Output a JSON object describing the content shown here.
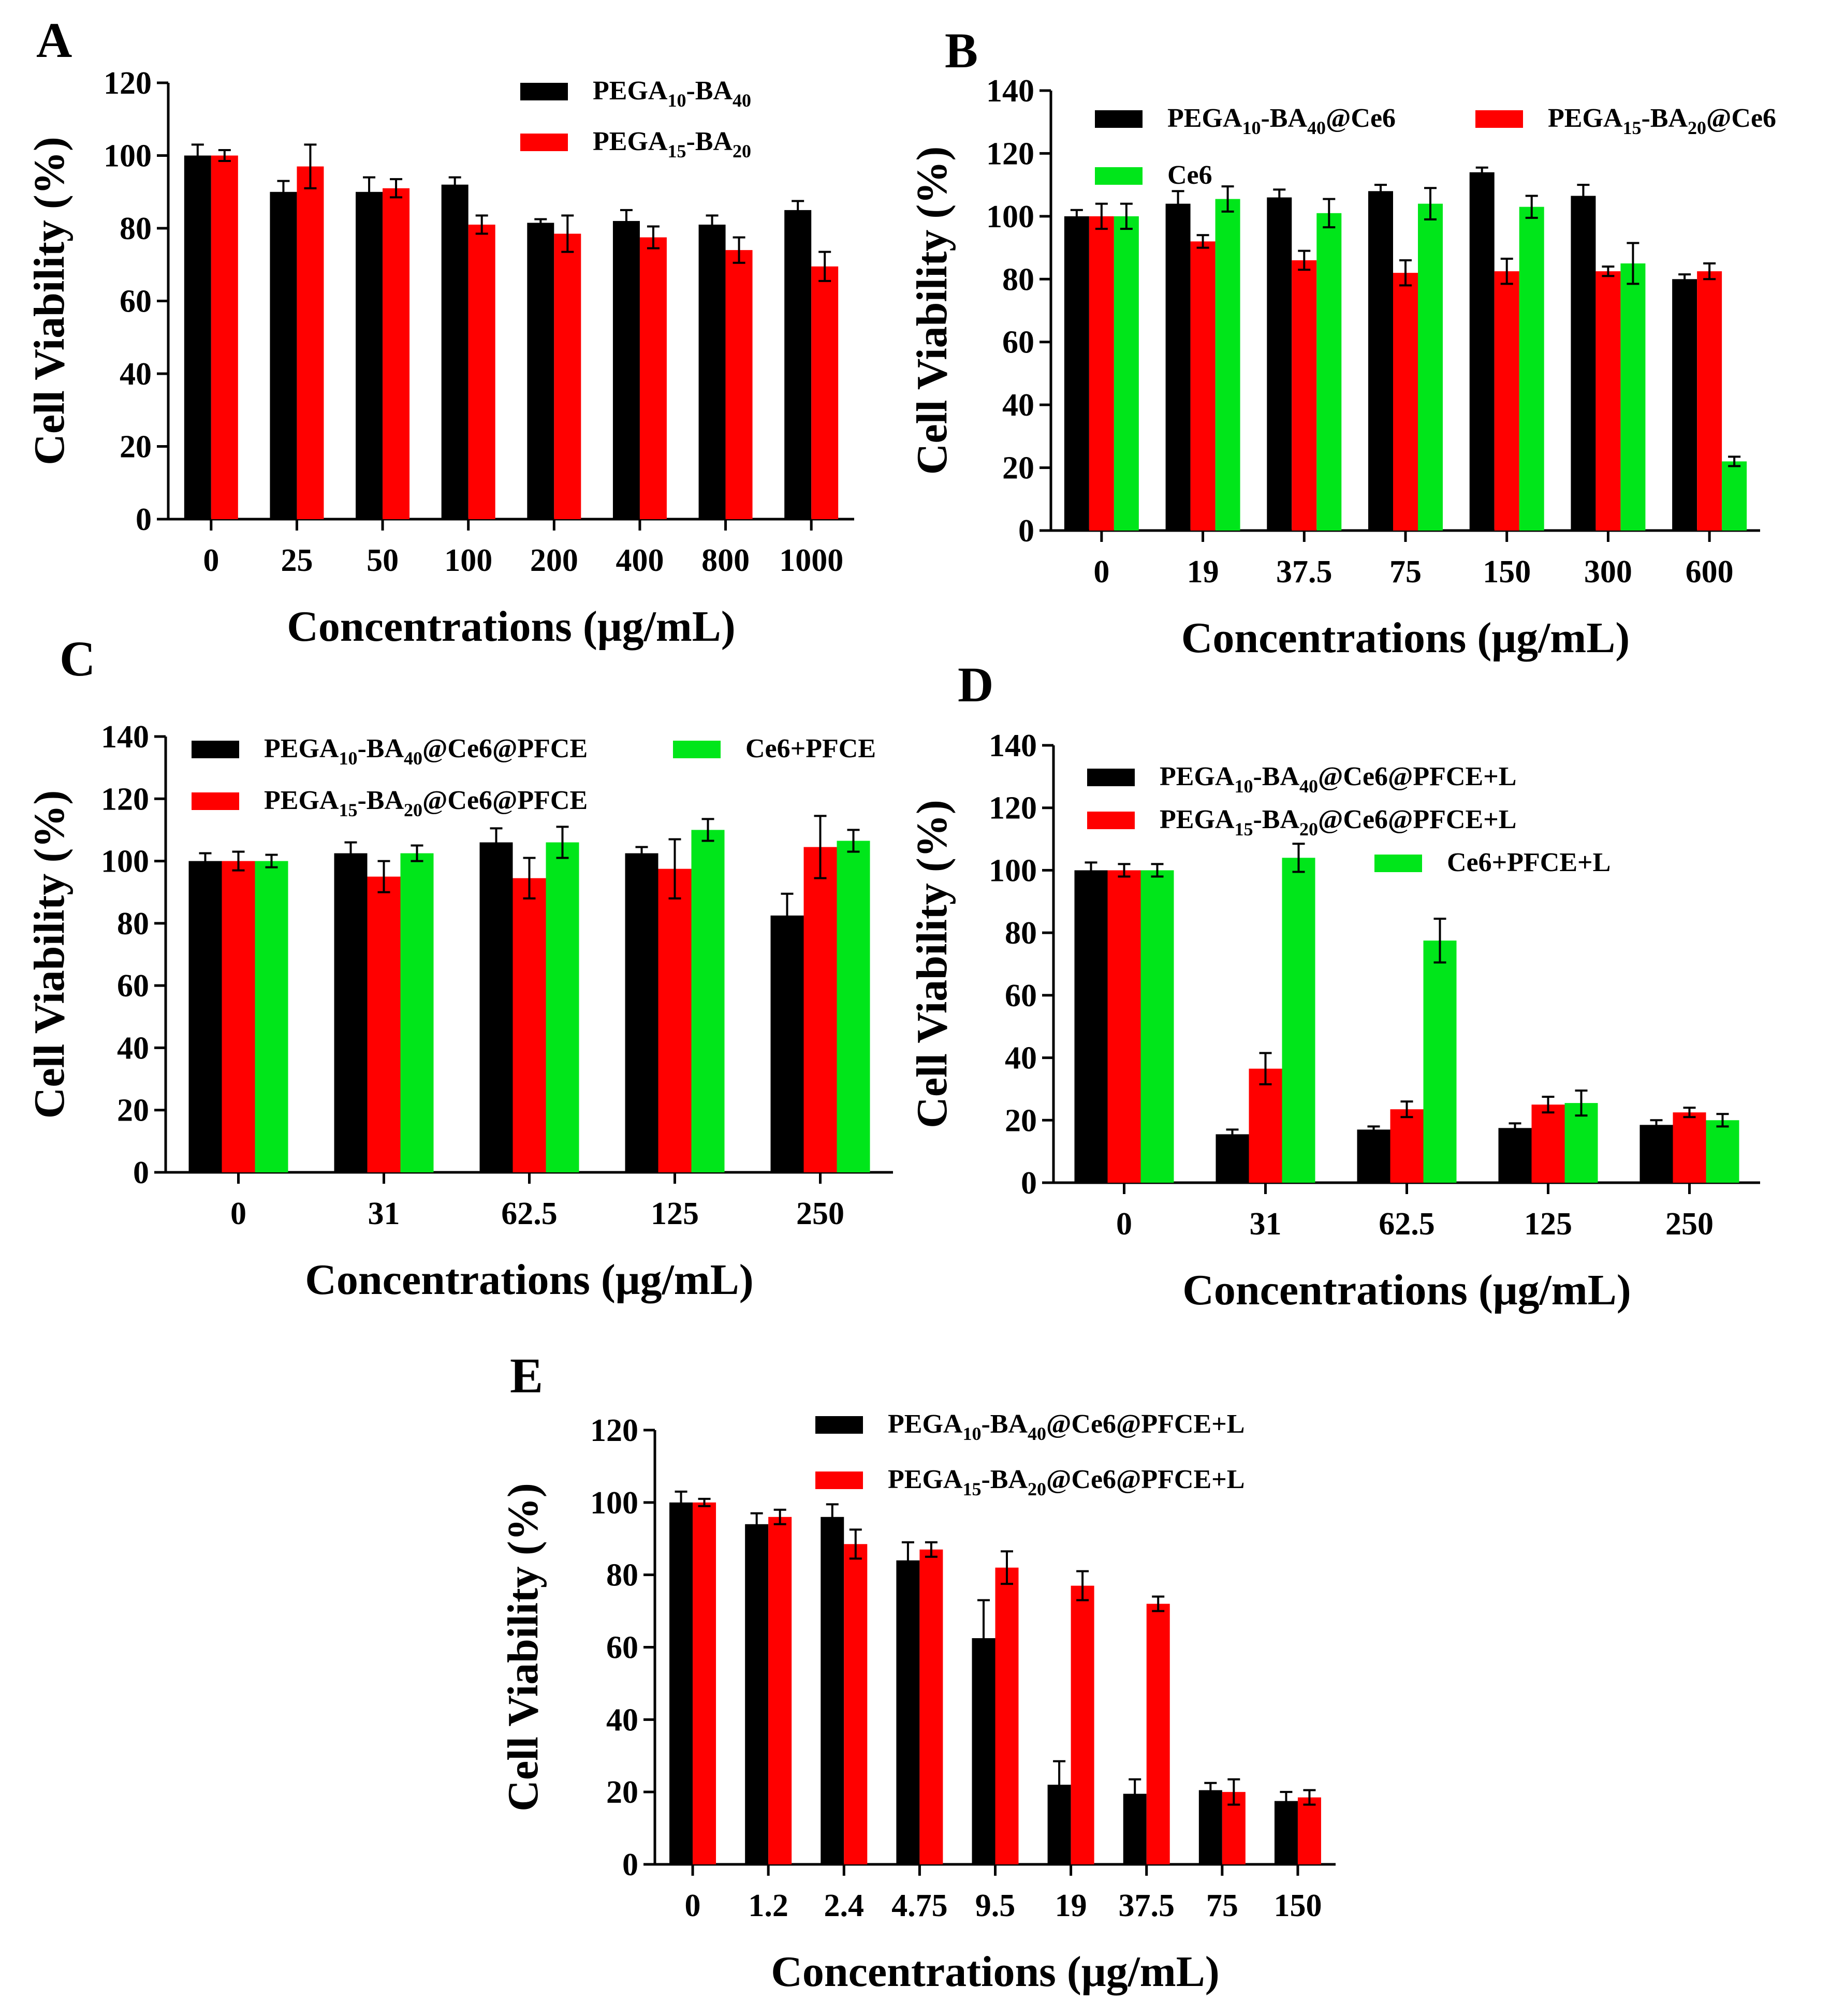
{
  "figure": {
    "name": "cell-viability-figure"
  },
  "chart_data": [
    {
      "id": "A",
      "type": "bar",
      "panel_label": "A",
      "xlabel": "Concentrations (μg/mL)",
      "ylabel": "Cell Viability (%)",
      "ylim": [
        0,
        120
      ],
      "yticks": [
        "0",
        "20",
        "40",
        "60",
        "80",
        "100",
        "120"
      ],
      "categories": [
        "0",
        "25",
        "50",
        "100",
        "200",
        "400",
        "800",
        "1000"
      ],
      "legend_columns": 1,
      "series": [
        {
          "name_parts": [
            [
              "PEGA",
              ""
            ],
            [
              "10",
              "sub"
            ],
            [
              "-BA",
              ""
            ],
            [
              "40",
              "sub"
            ]
          ],
          "color": "#000000",
          "values": [
            100,
            90,
            90,
            92,
            81.5,
            82,
            81,
            85
          ],
          "errors": [
            3,
            3,
            4,
            2,
            1,
            3,
            2.5,
            2.5
          ]
        },
        {
          "name_parts": [
            [
              "PEGA",
              ""
            ],
            [
              "15",
              "sub"
            ],
            [
              "-BA",
              ""
            ],
            [
              "20",
              "sub"
            ]
          ],
          "color": "#ff0000",
          "values": [
            100,
            97,
            91,
            81,
            78.5,
            77.5,
            74,
            69.5
          ],
          "errors": [
            1.5,
            6,
            2.5,
            2.5,
            5,
            3,
            3.5,
            4
          ]
        }
      ]
    },
    {
      "id": "B",
      "type": "bar",
      "panel_label": "B",
      "xlabel": "Concentrations (μg/mL)",
      "ylabel": "Cell Viability (%)",
      "ylim": [
        0,
        140
      ],
      "yticks": [
        "0",
        "20",
        "40",
        "60",
        "80",
        "100",
        "120",
        "140"
      ],
      "categories": [
        "0",
        "19",
        "37.5",
        "75",
        "150",
        "300",
        "600"
      ],
      "legend_columns": 2,
      "series": [
        {
          "name_parts": [
            [
              "PEGA",
              ""
            ],
            [
              "10",
              "sub"
            ],
            [
              "-BA",
              ""
            ],
            [
              "40",
              "sub"
            ],
            [
              "@Ce6",
              ""
            ]
          ],
          "color": "#000000",
          "values": [
            100,
            104,
            106,
            108,
            114,
            106.5,
            80
          ],
          "errors": [
            2,
            4,
            2.5,
            2,
            1.5,
            3.5,
            1.5
          ]
        },
        {
          "name_parts": [
            [
              "PEGA",
              ""
            ],
            [
              "15",
              "sub"
            ],
            [
              "-BA",
              ""
            ],
            [
              "20",
              "sub"
            ],
            [
              "@Ce6",
              ""
            ]
          ],
          "color": "#ff0000",
          "values": [
            100,
            92,
            86,
            82,
            82.5,
            82.5,
            82.5
          ],
          "errors": [
            4,
            2,
            3,
            4,
            4,
            1.5,
            2.5
          ]
        },
        {
          "name_parts": [
            [
              "Ce6",
              ""
            ]
          ],
          "color": "#00e61a",
          "values": [
            100,
            105.5,
            101,
            104,
            103,
            85,
            22
          ],
          "errors": [
            4,
            4,
            4.5,
            5,
            3.5,
            6.5,
            1.5
          ]
        }
      ]
    },
    {
      "id": "C",
      "type": "bar",
      "panel_label": "C",
      "xlabel": "Concentrations (μg/mL)",
      "ylabel": "Cell Viability (%)",
      "ylim": [
        0,
        140
      ],
      "yticks": [
        "0",
        "20",
        "40",
        "60",
        "80",
        "100",
        "120",
        "140"
      ],
      "categories": [
        "0",
        "31",
        "62.5",
        "125",
        "250"
      ],
      "legend_columns": 2,
      "series": [
        {
          "name_parts": [
            [
              "PEGA",
              ""
            ],
            [
              "10",
              "sub"
            ],
            [
              "-BA",
              ""
            ],
            [
              "40",
              "sub"
            ],
            [
              "@Ce6@PFCE",
              ""
            ]
          ],
          "color": "#000000",
          "values": [
            100,
            102.5,
            106,
            102.5,
            82.5
          ],
          "errors": [
            2.5,
            3.5,
            4.5,
            2,
            7
          ]
        },
        {
          "name_parts": [
            [
              "PEGA",
              ""
            ],
            [
              "15",
              "sub"
            ],
            [
              "-BA",
              ""
            ],
            [
              "20",
              "sub"
            ],
            [
              "@Ce6@PFCE",
              ""
            ]
          ],
          "color": "#ff0000",
          "values": [
            100,
            95,
            94.5,
            97.5,
            104.5
          ],
          "errors": [
            3,
            5,
            6.5,
            9.5,
            10
          ]
        },
        {
          "name_parts": [
            [
              "Ce6+PFCE",
              ""
            ]
          ],
          "color": "#00e61a",
          "values": [
            100,
            102.5,
            106,
            110,
            106.5
          ],
          "errors": [
            2,
            2.5,
            5,
            3.5,
            3.5
          ]
        }
      ]
    },
    {
      "id": "D",
      "type": "bar",
      "panel_label": "D",
      "xlabel": "Concentrations (μg/mL)",
      "ylabel": "Cell Viability (%)",
      "ylim": [
        0,
        140
      ],
      "yticks": [
        "0",
        "20",
        "40",
        "60",
        "80",
        "100",
        "120",
        "140"
      ],
      "categories": [
        "0",
        "31",
        "62.5",
        "125",
        "250"
      ],
      "legend_columns": 1,
      "series": [
        {
          "name_parts": [
            [
              "PEGA",
              ""
            ],
            [
              "10",
              "sub"
            ],
            [
              "-BA",
              ""
            ],
            [
              "40",
              "sub"
            ],
            [
              "@Ce6@PFCE+L",
              ""
            ]
          ],
          "color": "#000000",
          "values": [
            100,
            15.5,
            17,
            17.5,
            18.5
          ],
          "errors": [
            2.5,
            1.5,
            1,
            1.5,
            1.5
          ]
        },
        {
          "name_parts": [
            [
              "PEGA",
              ""
            ],
            [
              "15",
              "sub"
            ],
            [
              "-BA",
              ""
            ],
            [
              "20",
              "sub"
            ],
            [
              "@Ce6@PFCE+L",
              ""
            ]
          ],
          "color": "#ff0000",
          "values": [
            100,
            36.5,
            23.5,
            25,
            22.5
          ],
          "errors": [
            2,
            5,
            2.5,
            2.5,
            1.5
          ]
        },
        {
          "name_parts": [
            [
              "Ce6+PFCE+L",
              ""
            ]
          ],
          "color": "#00e61a",
          "values": [
            100,
            104,
            77.5,
            25.5,
            20
          ],
          "errors": [
            2,
            4.5,
            7,
            4,
            2
          ]
        }
      ]
    },
    {
      "id": "E",
      "type": "bar",
      "panel_label": "E",
      "xlabel": "Concentrations (μg/mL)",
      "ylabel": "Cell Viability (%)",
      "ylim": [
        0,
        120
      ],
      "yticks": [
        "0",
        "20",
        "40",
        "60",
        "80",
        "100",
        "120"
      ],
      "categories": [
        "0",
        "1.2",
        "2.4",
        "4.75",
        "9.5",
        "19",
        "37.5",
        "75",
        "150"
      ],
      "legend_columns": 1,
      "series": [
        {
          "name_parts": [
            [
              "PEGA",
              ""
            ],
            [
              "10",
              "sub"
            ],
            [
              "-BA",
              ""
            ],
            [
              "40",
              "sub"
            ],
            [
              "@Ce6@PFCE+L",
              ""
            ]
          ],
          "color": "#000000",
          "values": [
            100,
            94,
            96,
            84,
            62.5,
            22,
            19.5,
            20.5,
            17.5
          ],
          "errors": [
            3,
            3,
            3.5,
            5,
            10.5,
            6.5,
            4,
            2,
            2.5
          ]
        },
        {
          "name_parts": [
            [
              "PEGA",
              ""
            ],
            [
              "15",
              "sub"
            ],
            [
              "-BA",
              ""
            ],
            [
              "20",
              "sub"
            ],
            [
              "@Ce6@PFCE+L",
              ""
            ]
          ],
          "color": "#ff0000",
          "values": [
            100,
            96,
            88.5,
            87,
            82,
            77,
            72,
            20,
            18.5
          ],
          "errors": [
            1,
            2,
            4,
            2,
            4.5,
            4,
            2,
            3.5,
            2
          ]
        }
      ]
    }
  ]
}
